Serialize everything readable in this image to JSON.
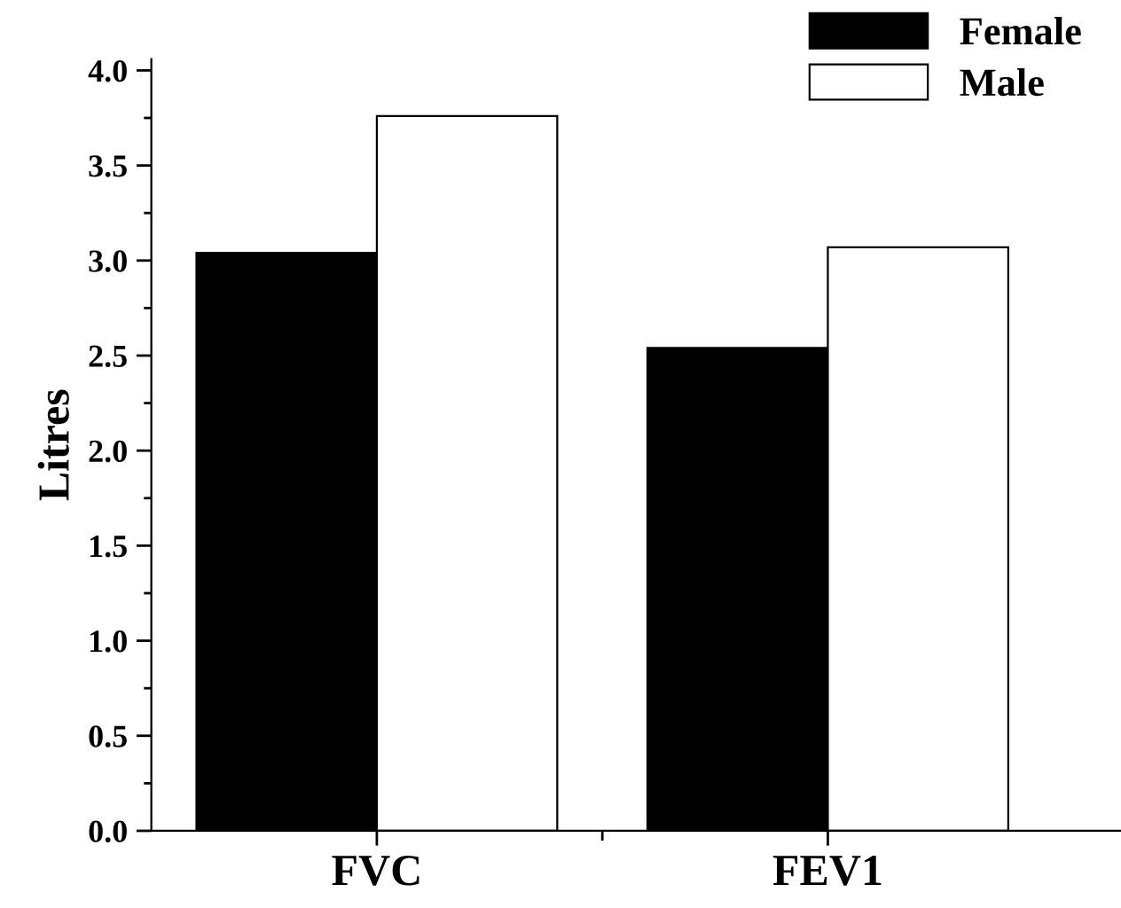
{
  "chart_data": {
    "type": "bar",
    "ylabel": "Litres",
    "categories": [
      "FVC",
      "FEV1"
    ],
    "series": [
      {
        "name": "Female",
        "color": "#000000",
        "values": [
          3.04,
          2.54
        ]
      },
      {
        "name": "Male",
        "color": "#ffffff",
        "values": [
          3.76,
          3.07
        ]
      }
    ],
    "ylim": [
      0,
      4.06
    ],
    "yticks": [
      {
        "value": 0,
        "label": "0.0"
      },
      0.5,
      {
        "value": 1,
        "label": "1.0"
      },
      1.5,
      {
        "value": 2,
        "label": "2.0"
      },
      2.5,
      {
        "value": 3,
        "label": "3.0"
      },
      3.5,
      {
        "value": 4,
        "label": "4.0"
      }
    ],
    "grid": false,
    "legend": "top right"
  }
}
